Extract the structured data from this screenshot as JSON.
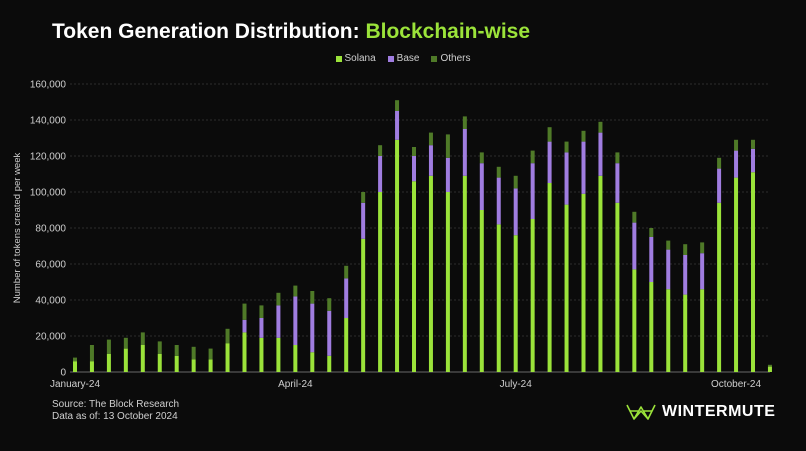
{
  "title": {
    "main": "Token Generation Distribution:",
    "highlight": "Blockchain-wise"
  },
  "legend": [
    {
      "label": "Solana",
      "color": "#9be33a"
    },
    {
      "label": "Base",
      "color": "#a07de0"
    },
    {
      "label": "Others",
      "color": "#4f7a28"
    }
  ],
  "footer": {
    "source": "Source: The Block Research",
    "date": "Data as of: 13 October 2024"
  },
  "brand": {
    "name": "WINTERMUTE"
  },
  "chart_data": {
    "type": "bar",
    "stacked": true,
    "ylabel": "Number of tokens created per week",
    "ylim": [
      0,
      160000
    ],
    "yticks": [
      0,
      20000,
      40000,
      60000,
      80000,
      100000,
      120000,
      140000,
      160000
    ],
    "ytick_labels": [
      "0",
      "20,000",
      "40,000",
      "60,000",
      "80,000",
      "100,000",
      "120,000",
      "140,000",
      "160,000"
    ],
    "xtick_labels": [
      {
        "label": "January-24",
        "index": 0
      },
      {
        "label": "April-24",
        "index": 13
      },
      {
        "label": "July-24",
        "index": 26
      },
      {
        "label": "October-24",
        "index": 39
      }
    ],
    "series": [
      {
        "name": "Solana",
        "values": [
          6000,
          6000,
          10000,
          13000,
          15000,
          10000,
          9000,
          7000,
          7000,
          16000,
          22000,
          19000,
          19000,
          15000,
          11000,
          9000,
          30000,
          74000,
          100000,
          129000,
          106000,
          109000,
          100000,
          109000,
          90000,
          82000,
          76000,
          85000,
          105000,
          93000,
          99000,
          109000,
          94000,
          57000,
          50000,
          46000,
          43000,
          46000,
          94000,
          108000,
          111000,
          3000
        ]
      },
      {
        "name": "Base",
        "values": [
          0,
          0,
          0,
          0,
          0,
          0,
          0,
          0,
          0,
          0,
          7000,
          11000,
          18000,
          27000,
          27000,
          25000,
          22000,
          20000,
          20000,
          16000,
          14000,
          17000,
          19000,
          26000,
          26000,
          26000,
          26000,
          31000,
          23000,
          29000,
          29000,
          24000,
          22000,
          26000,
          25000,
          22000,
          22000,
          20000,
          19000,
          15000,
          13000,
          0
        ]
      },
      {
        "name": "Others",
        "values": [
          2000,
          9000,
          8000,
          6000,
          7000,
          7000,
          6000,
          7000,
          6000,
          8000,
          9000,
          7000,
          7000,
          6000,
          7000,
          7000,
          7000,
          6000,
          6000,
          6000,
          5000,
          7000,
          13000,
          7000,
          6000,
          6000,
          7000,
          7000,
          8000,
          6000,
          6000,
          6000,
          6000,
          6000,
          5000,
          5000,
          6000,
          6000,
          6000,
          6000,
          5000,
          1000
        ]
      }
    ]
  }
}
